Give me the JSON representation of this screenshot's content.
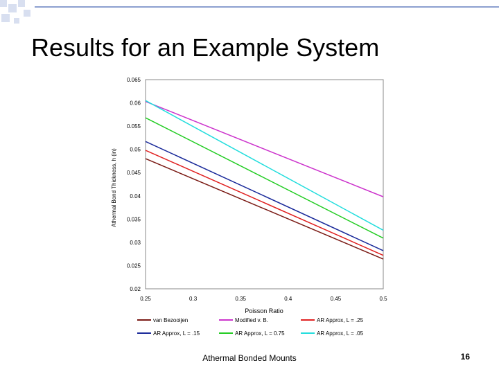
{
  "slide": {
    "title": "Results for an Example System",
    "footer": "Athermal Bonded Mounts",
    "page_number": "16"
  },
  "colors": {
    "deco_squares": "#d8dff0",
    "deco_line": "#8c9fd0"
  },
  "chart_data": {
    "type": "line",
    "xlabel": "Poisson Ratio",
    "ylabel": "Athermal Bond Thickness, h (in)",
    "xlim": [
      0.25,
      0.5
    ],
    "ylim": [
      0.02,
      0.065
    ],
    "x_ticks": [
      "0.25",
      "0.3",
      "0.35",
      "0.4",
      "0.45",
      "0.5"
    ],
    "y_ticks": [
      "0.065",
      "0.06",
      "0.055",
      "0.05",
      "0.045",
      "0.04",
      "0.035",
      "0.03",
      "0.025",
      "0.02"
    ],
    "grid": false,
    "legend_position": "bottom",
    "series": [
      {
        "name": "van Bezooijen",
        "color": "#7a1a14",
        "x": [
          0.25,
          0.5
        ],
        "y": [
          0.048,
          0.0264
        ]
      },
      {
        "name": "Modified v. B.",
        "color": "#cc33cc",
        "x": [
          0.25,
          0.5
        ],
        "y": [
          0.0603,
          0.0398
        ]
      },
      {
        "name": "AR Approx, L = .25",
        "color": "#e02020",
        "x": [
          0.25,
          0.5
        ],
        "y": [
          0.0498,
          0.0272
        ]
      },
      {
        "name": "AR Approx, L = .15",
        "color": "#1a2a9a",
        "x": [
          0.25,
          0.5
        ],
        "y": [
          0.0517,
          0.0282
        ]
      },
      {
        "name": "AR Approx, L = 0.75",
        "color": "#22cc22",
        "x": [
          0.25,
          0.5
        ],
        "y": [
          0.0568,
          0.0309
        ]
      },
      {
        "name": "AR Approx, L = .05",
        "color": "#22dddd",
        "x": [
          0.25,
          0.5
        ],
        "y": [
          0.0605,
          0.0326
        ]
      }
    ]
  }
}
